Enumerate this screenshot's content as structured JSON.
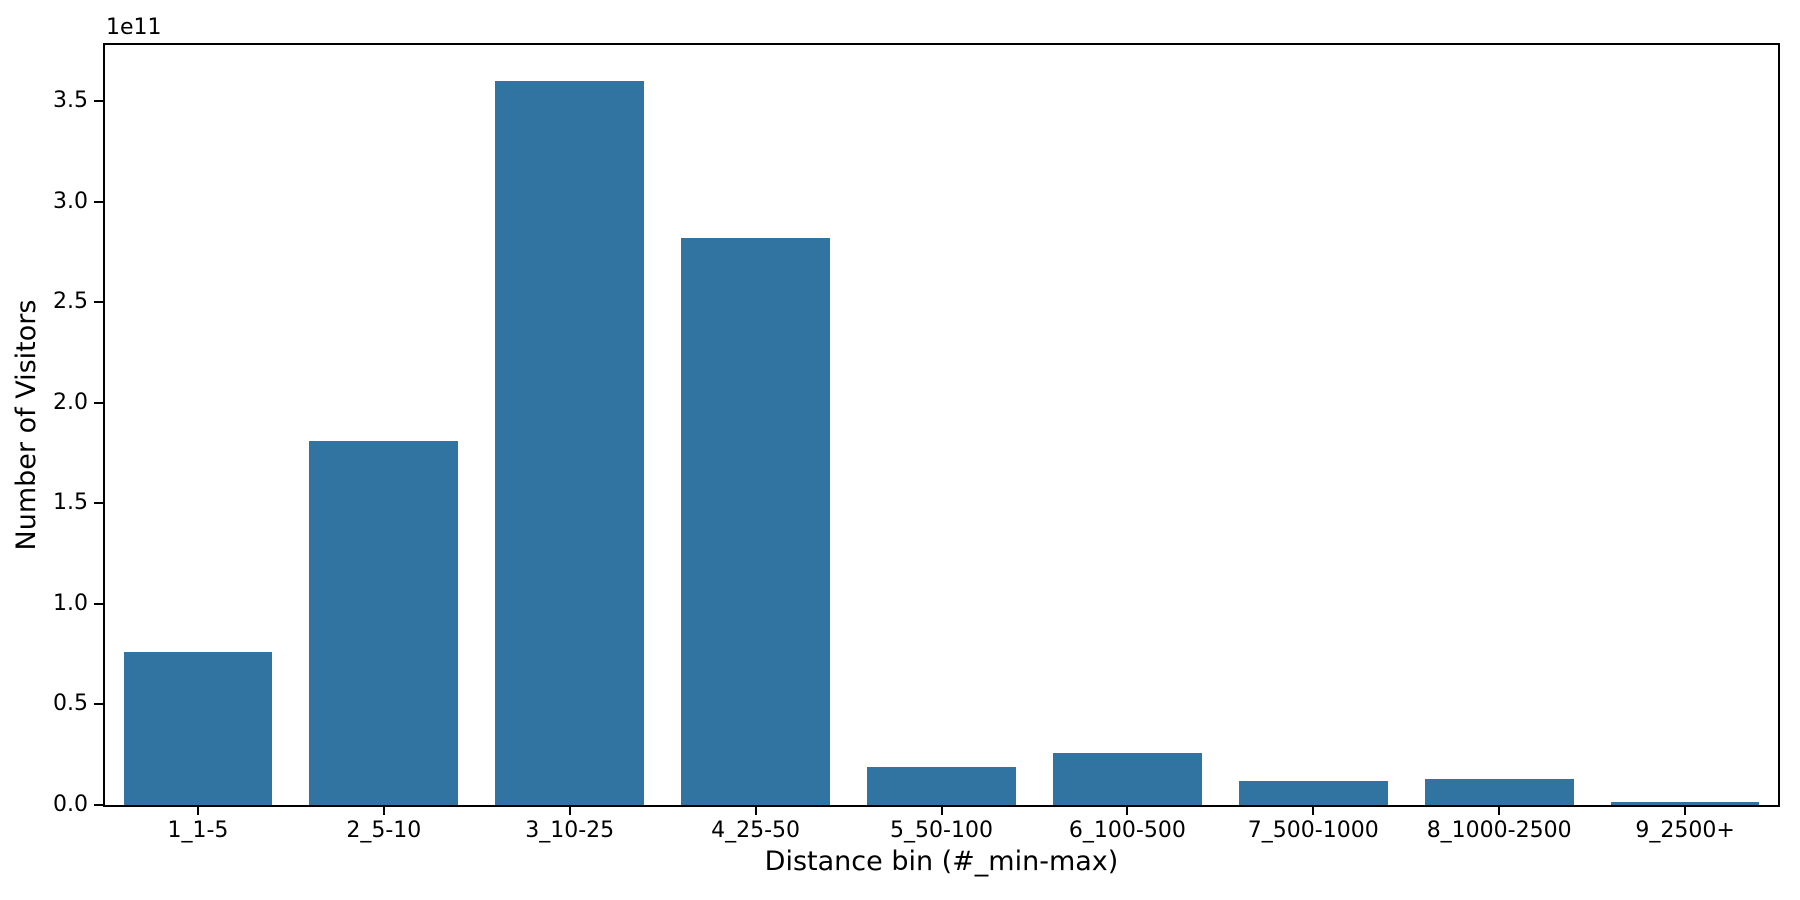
{
  "chart_data": {
    "type": "bar",
    "title": "",
    "xlabel": "Distance bin (#_min-max)",
    "ylabel": "Number of Visitors",
    "y_offset_text": "1e11",
    "categories": [
      "1_1-5",
      "2_5-10",
      "3_10-25",
      "4_25-50",
      "5_50-100",
      "6_100-500",
      "7_500-1000",
      "8_1000-2500",
      "9_2500+"
    ],
    "values_in_1e11": [
      0.76,
      1.81,
      3.6,
      2.82,
      0.19,
      0.26,
      0.12,
      0.13,
      0.015
    ],
    "ytick_labels": [
      "0.0",
      "0.5",
      "1.0",
      "1.5",
      "2.0",
      "2.5",
      "3.0",
      "3.5"
    ],
    "ytick_values": [
      0.0,
      0.5,
      1.0,
      1.5,
      2.0,
      2.5,
      3.0,
      3.5
    ],
    "ylim": [
      0,
      3.78
    ],
    "bar_color": "#3274a1",
    "spine_color": "#000000",
    "background_color": "#ffffff",
    "grid": false,
    "legend": null,
    "bar_band_fraction": 0.8
  }
}
